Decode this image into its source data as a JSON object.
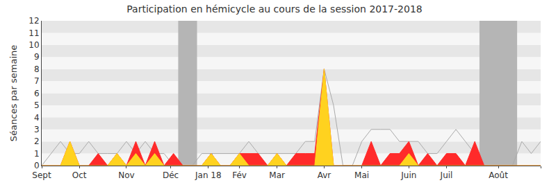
{
  "chart_data": {
    "type": "line",
    "title": "Participation en hémicycle au cours de la session 2017-2018",
    "y_label": "Séances par semaine",
    "x": [
      0,
      1,
      2,
      3,
      4,
      5,
      6,
      7,
      8,
      9,
      10,
      11,
      12,
      13,
      14,
      15,
      16,
      17,
      18,
      19,
      20,
      21,
      22,
      23,
      24,
      25,
      26,
      27,
      28,
      29,
      30,
      31,
      32,
      33,
      34,
      35,
      36,
      37,
      38,
      39,
      40,
      41,
      42,
      43,
      44,
      45,
      46,
      47,
      48,
      49,
      50,
      51,
      52,
      53
    ],
    "series": [
      {
        "type": "line",
        "color": "#aaaaaa",
        "values": [
          0,
          1,
          2,
          1,
          1,
          2,
          1,
          1,
          1,
          2,
          1,
          2,
          1,
          1,
          0,
          0,
          0,
          1,
          1,
          1,
          1,
          1,
          2,
          1,
          1,
          1,
          1,
          1,
          2,
          2,
          8,
          5,
          0,
          0,
          2,
          3,
          3,
          3,
          2,
          2,
          2,
          1,
          1,
          2,
          3,
          2,
          1,
          0,
          0,
          0,
          0,
          2,
          1,
          2
        ]
      },
      {
        "type": "area",
        "color": "#ff2a2a",
        "values": [
          0,
          0,
          0,
          2,
          0,
          0,
          1,
          0,
          1,
          0,
          2,
          0,
          2,
          0,
          1,
          0,
          0,
          0,
          1,
          0,
          0,
          1,
          1,
          1,
          0,
          1,
          0,
          1,
          1,
          1,
          8,
          0,
          0,
          0,
          0,
          2,
          0,
          1,
          1,
          2,
          0,
          1,
          0,
          1,
          1,
          0,
          2,
          0,
          0,
          0,
          0,
          0,
          0,
          0
        ]
      },
      {
        "type": "area",
        "color": "#ffd21f",
        "values": [
          0,
          0,
          0,
          2,
          0,
          0,
          0,
          0,
          1,
          0,
          1,
          0,
          1,
          0,
          0,
          0,
          0,
          0,
          1,
          0,
          0,
          1,
          0,
          0,
          0,
          1,
          0,
          0,
          0,
          0,
          8,
          0,
          0,
          0,
          0,
          0,
          0,
          0,
          0,
          1,
          0,
          0,
          0,
          0,
          0,
          0,
          0,
          0,
          0,
          0,
          0,
          0,
          0,
          0
        ]
      },
      {
        "type": "bar",
        "color": "#7070e0",
        "values": [
          0,
          0,
          0,
          0,
          0,
          0,
          0,
          0,
          0,
          0,
          1,
          0,
          0,
          0,
          0,
          0,
          0,
          0,
          1,
          0,
          0,
          0,
          0,
          0,
          0,
          0,
          0,
          0,
          0,
          0,
          1,
          0,
          0,
          0,
          0,
          0,
          0,
          0,
          0,
          0,
          0,
          0,
          0,
          0,
          0,
          0,
          0,
          0,
          0,
          0,
          0,
          0,
          0,
          0
        ]
      }
    ],
    "vacations": [
      [
        14.5,
        16.5
      ],
      [
        46.5,
        50.5
      ]
    ],
    "xlim": [
      0,
      53
    ],
    "xticks": [
      {
        "value": 0,
        "label": "Sept"
      },
      {
        "value": 4,
        "label": "Oct"
      },
      {
        "value": 9,
        "label": "Nov"
      },
      {
        "value": 13.7,
        "label": "Déc"
      },
      {
        "value": 17.7,
        "label": "Jan 18"
      },
      {
        "value": 21,
        "label": "Fév"
      },
      {
        "value": 25,
        "label": "Mar"
      },
      {
        "value": 30,
        "label": "Avr"
      },
      {
        "value": 34,
        "label": "Mai"
      },
      {
        "value": 39,
        "label": "Juin"
      },
      {
        "value": 43,
        "label": "Juil"
      },
      {
        "value": 48.5,
        "label": "Août"
      },
      {
        "value": 53,
        "label": "Sept"
      }
    ],
    "ylim": [
      0,
      12
    ],
    "yticks": [
      0,
      1,
      2,
      3,
      4,
      5,
      6,
      7,
      8,
      9,
      10,
      11,
      12
    ],
    "grid": true
  }
}
